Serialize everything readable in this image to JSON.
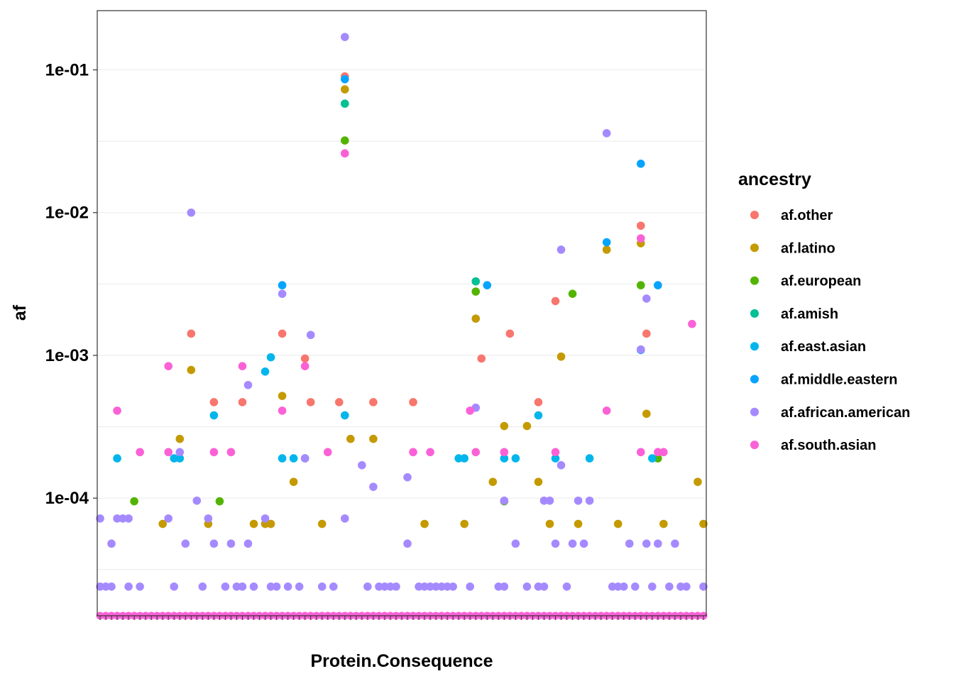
{
  "chart_data": {
    "type": "scatter",
    "title": "",
    "xlabel": "Protein.Consequence",
    "ylabel": "af",
    "y_scale": "log10",
    "ylim": [
      1.5e-05,
      0.26
    ],
    "y_ticks": [
      {
        "value": 0.0001,
        "label": "1e-04"
      },
      {
        "value": 0.001,
        "label": "1e-03"
      },
      {
        "value": 0.01,
        "label": "1e-02"
      },
      {
        "value": 0.1,
        "label": "1e-01"
      }
    ],
    "x_category_count": 107,
    "x_tick_labels_note": "",
    "grid": true,
    "legend": {
      "title": "ancestry",
      "placement": "right"
    },
    "series": [
      {
        "name": "af.other",
        "color": "#F8766D",
        "points": [
          [
            16,
            0.00142
          ],
          [
            20,
            0.00047
          ],
          [
            25,
            0.00047
          ],
          [
            32,
            0.00142
          ],
          [
            36,
            0.00095
          ],
          [
            37,
            0.00047
          ],
          [
            42,
            0.00047
          ],
          [
            43,
            0.09
          ],
          [
            48,
            0.00047
          ],
          [
            55,
            0.00047
          ],
          [
            67,
            0.00095
          ],
          [
            72,
            0.00142
          ],
          [
            77,
            0.00047
          ],
          [
            80,
            0.0024
          ],
          [
            95,
            0.0081
          ],
          [
            96,
            0.00142
          ]
        ]
      },
      {
        "name": "af.latino",
        "color": "#C49A00",
        "points": [
          [
            11,
            6.6e-05
          ],
          [
            14,
            0.00026
          ],
          [
            16,
            0.00079
          ],
          [
            19,
            6.6e-05
          ],
          [
            27,
            6.6e-05
          ],
          [
            29,
            6.6e-05
          ],
          [
            30,
            6.6e-05
          ],
          [
            32,
            0.00052
          ],
          [
            34,
            0.00013
          ],
          [
            36,
            0.00019
          ],
          [
            39,
            6.6e-05
          ],
          [
            43,
            0.073
          ],
          [
            44,
            0.00026
          ],
          [
            48,
            0.00026
          ],
          [
            57,
            6.6e-05
          ],
          [
            64,
            6.6e-05
          ],
          [
            66,
            0.00181
          ],
          [
            69,
            0.00013
          ],
          [
            71,
            0.00032
          ],
          [
            75,
            0.00032
          ],
          [
            77,
            0.00013
          ],
          [
            79,
            6.6e-05
          ],
          [
            81,
            0.00098
          ],
          [
            84,
            6.6e-05
          ],
          [
            89,
            0.0055
          ],
          [
            91,
            6.6e-05
          ],
          [
            95,
            0.0061
          ],
          [
            96,
            0.00039
          ],
          [
            99,
            6.6e-05
          ],
          [
            105,
            0.00013
          ],
          [
            106,
            6.6e-05
          ]
        ]
      },
      {
        "name": "af.european",
        "color": "#53B400",
        "points": [
          [
            6,
            9.5e-05
          ],
          [
            21,
            9.5e-05
          ],
          [
            43,
            0.032
          ],
          [
            66,
            0.0028
          ],
          [
            71,
            9.5e-05
          ],
          [
            83,
            0.0027
          ],
          [
            95,
            0.0031
          ],
          [
            98,
            0.00019
          ]
        ]
      },
      {
        "name": "af.amish",
        "color": "#00C094",
        "points": [
          [
            43,
            0.058
          ],
          [
            66,
            0.0033
          ]
        ]
      },
      {
        "name": "af.east.asian",
        "color": "#00B6EB",
        "points": [
          [
            3,
            0.00019
          ],
          [
            13,
            0.00019
          ],
          [
            14,
            0.00019
          ],
          [
            20,
            0.00038
          ],
          [
            29,
            0.00077
          ],
          [
            30,
            0.00097
          ],
          [
            32,
            0.00019
          ],
          [
            34,
            0.00019
          ],
          [
            43,
            0.00038
          ],
          [
            63,
            0.00019
          ],
          [
            64,
            0.00019
          ],
          [
            71,
            0.00019
          ],
          [
            73,
            0.00019
          ],
          [
            77,
            0.00038
          ],
          [
            80,
            0.00019
          ],
          [
            86,
            0.00019
          ],
          [
            97,
            0.00019
          ]
        ]
      },
      {
        "name": "af.middle.eastern",
        "color": "#06A4FF",
        "points": [
          [
            32,
            0.0031
          ],
          [
            43,
            0.086
          ],
          [
            68,
            0.0031
          ],
          [
            89,
            0.0062
          ],
          [
            95,
            0.022
          ],
          [
            95,
            0.00109
          ],
          [
            98,
            0.0031
          ]
        ]
      },
      {
        "name": "af.african.american",
        "color": "#A58AFF",
        "points": [
          [
            0,
            2.4e-05
          ],
          [
            0,
            7.2e-05
          ],
          [
            1,
            2.4e-05
          ],
          [
            2,
            4.8e-05
          ],
          [
            2,
            2.4e-05
          ],
          [
            3,
            7.2e-05
          ],
          [
            4,
            7.2e-05
          ],
          [
            5,
            2.4e-05
          ],
          [
            5,
            7.2e-05
          ],
          [
            7,
            2.4e-05
          ],
          [
            12,
            7.2e-05
          ],
          [
            13,
            2.4e-05
          ],
          [
            14,
            0.00021
          ],
          [
            15,
            4.8e-05
          ],
          [
            16,
            0.01
          ],
          [
            17,
            9.6e-05
          ],
          [
            18,
            2.4e-05
          ],
          [
            19,
            7.2e-05
          ],
          [
            20,
            4.8e-05
          ],
          [
            22,
            2.4e-05
          ],
          [
            23,
            4.8e-05
          ],
          [
            24,
            2.4e-05
          ],
          [
            25,
            2.4e-05
          ],
          [
            26,
            0.00062
          ],
          [
            26,
            4.8e-05
          ],
          [
            27,
            2.4e-05
          ],
          [
            29,
            7.2e-05
          ],
          [
            30,
            2.4e-05
          ],
          [
            31,
            2.4e-05
          ],
          [
            32,
            0.0027
          ],
          [
            33,
            2.4e-05
          ],
          [
            35,
            2.4e-05
          ],
          [
            36,
            0.00019
          ],
          [
            37,
            0.00139
          ],
          [
            39,
            2.4e-05
          ],
          [
            41,
            2.4e-05
          ],
          [
            43,
            0.17
          ],
          [
            43,
            7.2e-05
          ],
          [
            46,
            0.00017
          ],
          [
            47,
            2.4e-05
          ],
          [
            48,
            0.00012
          ],
          [
            49,
            2.4e-05
          ],
          [
            50,
            2.4e-05
          ],
          [
            51,
            2.4e-05
          ],
          [
            52,
            2.4e-05
          ],
          [
            54,
            4.8e-05
          ],
          [
            54,
            0.00014
          ],
          [
            56,
            2.4e-05
          ],
          [
            57,
            2.4e-05
          ],
          [
            58,
            2.4e-05
          ],
          [
            59,
            2.4e-05
          ],
          [
            60,
            2.4e-05
          ],
          [
            61,
            2.4e-05
          ],
          [
            62,
            2.4e-05
          ],
          [
            65,
            2.4e-05
          ],
          [
            66,
            0.00043
          ],
          [
            70,
            2.4e-05
          ],
          [
            71,
            2.4e-05
          ],
          [
            71,
            9.6e-05
          ],
          [
            73,
            4.8e-05
          ],
          [
            75,
            2.4e-05
          ],
          [
            77,
            2.4e-05
          ],
          [
            78,
            9.6e-05
          ],
          [
            78,
            2.4e-05
          ],
          [
            79,
            9.6e-05
          ],
          [
            80,
            4.8e-05
          ],
          [
            81,
            0.0055
          ],
          [
            81,
            0.00017
          ],
          [
            82,
            2.4e-05
          ],
          [
            83,
            4.8e-05
          ],
          [
            84,
            9.6e-05
          ],
          [
            85,
            4.8e-05
          ],
          [
            86,
            9.6e-05
          ],
          [
            89,
            0.036
          ],
          [
            90,
            2.4e-05
          ],
          [
            91,
            2.4e-05
          ],
          [
            92,
            2.4e-05
          ],
          [
            93,
            4.8e-05
          ],
          [
            94,
            2.4e-05
          ],
          [
            95,
            0.0011
          ],
          [
            96,
            0.0025
          ],
          [
            96,
            4.8e-05
          ],
          [
            97,
            2.4e-05
          ],
          [
            98,
            4.8e-05
          ],
          [
            100,
            2.4e-05
          ],
          [
            101,
            4.8e-05
          ],
          [
            102,
            2.4e-05
          ],
          [
            103,
            2.4e-05
          ],
          [
            106,
            2.4e-05
          ]
        ]
      },
      {
        "name": "af.south.asian",
        "color": "#FB61D7",
        "points": [
          [
            3,
            0.00041
          ],
          [
            7,
            0.00021
          ],
          [
            12,
            0.00084
          ],
          [
            12,
            0.00021
          ],
          [
            20,
            0.00021
          ],
          [
            23,
            0.00021
          ],
          [
            25,
            0.00084
          ],
          [
            32,
            0.00041
          ],
          [
            36,
            0.00084
          ],
          [
            40,
            0.00021
          ],
          [
            43,
            0.026
          ],
          [
            55,
            0.00021
          ],
          [
            58,
            0.00021
          ],
          [
            65,
            0.00041
          ],
          [
            66,
            0.00021
          ],
          [
            71,
            0.00021
          ],
          [
            80,
            0.00021
          ],
          [
            89,
            0.00041
          ],
          [
            95,
            0.0066
          ],
          [
            95,
            0.00021
          ],
          [
            98,
            0.00021
          ],
          [
            99,
            0.00021
          ],
          [
            104,
            0.00166
          ]
        ]
      }
    ]
  }
}
